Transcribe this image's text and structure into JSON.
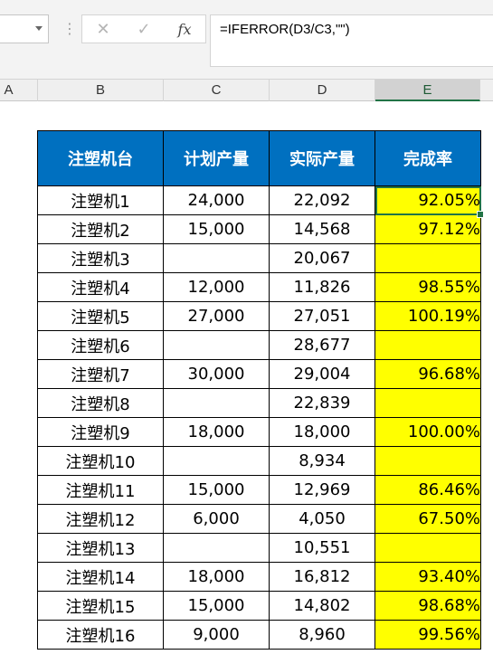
{
  "formula_bar": {
    "cancel_icon": "x-icon",
    "confirm_icon": "check-icon",
    "function_label": "fx",
    "formula": "=IFERROR(D3/C3,\"\")"
  },
  "columns": [
    "A",
    "B",
    "C",
    "D",
    "E"
  ],
  "selected_column": "E",
  "table": {
    "headers": [
      "注塑机台",
      "计划产量",
      "实际产量",
      "完成率"
    ],
    "rows": [
      {
        "name": "注塑机1",
        "plan": "24,000",
        "actual": "22,092",
        "rate": "92.05%"
      },
      {
        "name": "注塑机2",
        "plan": "15,000",
        "actual": "14,568",
        "rate": "97.12%"
      },
      {
        "name": "注塑机3",
        "plan": "",
        "actual": "20,067",
        "rate": ""
      },
      {
        "name": "注塑机4",
        "plan": "12,000",
        "actual": "11,826",
        "rate": "98.55%"
      },
      {
        "name": "注塑机5",
        "plan": "27,000",
        "actual": "27,051",
        "rate": "100.19%"
      },
      {
        "name": "注塑机6",
        "plan": "",
        "actual": "28,677",
        "rate": ""
      },
      {
        "name": "注塑机7",
        "plan": "30,000",
        "actual": "29,004",
        "rate": "96.68%"
      },
      {
        "name": "注塑机8",
        "plan": "",
        "actual": "22,839",
        "rate": ""
      },
      {
        "name": "注塑机9",
        "plan": "18,000",
        "actual": "18,000",
        "rate": "100.00%"
      },
      {
        "name": "注塑机10",
        "plan": "",
        "actual": "8,934",
        "rate": ""
      },
      {
        "name": "注塑机11",
        "plan": "15,000",
        "actual": "12,969",
        "rate": "86.46%"
      },
      {
        "name": "注塑机12",
        "plan": "6,000",
        "actual": "4,050",
        "rate": "67.50%"
      },
      {
        "name": "注塑机13",
        "plan": "",
        "actual": "10,551",
        "rate": ""
      },
      {
        "name": "注塑机14",
        "plan": "18,000",
        "actual": "16,812",
        "rate": "93.40%"
      },
      {
        "name": "注塑机15",
        "plan": "15,000",
        "actual": "14,802",
        "rate": "98.68%"
      },
      {
        "name": "注塑机16",
        "plan": "9,000",
        "actual": "8,960",
        "rate": "99.56%"
      }
    ]
  },
  "colors": {
    "header_fill": "#0070c0",
    "rate_fill": "#ffff00",
    "selection": "#217346"
  }
}
